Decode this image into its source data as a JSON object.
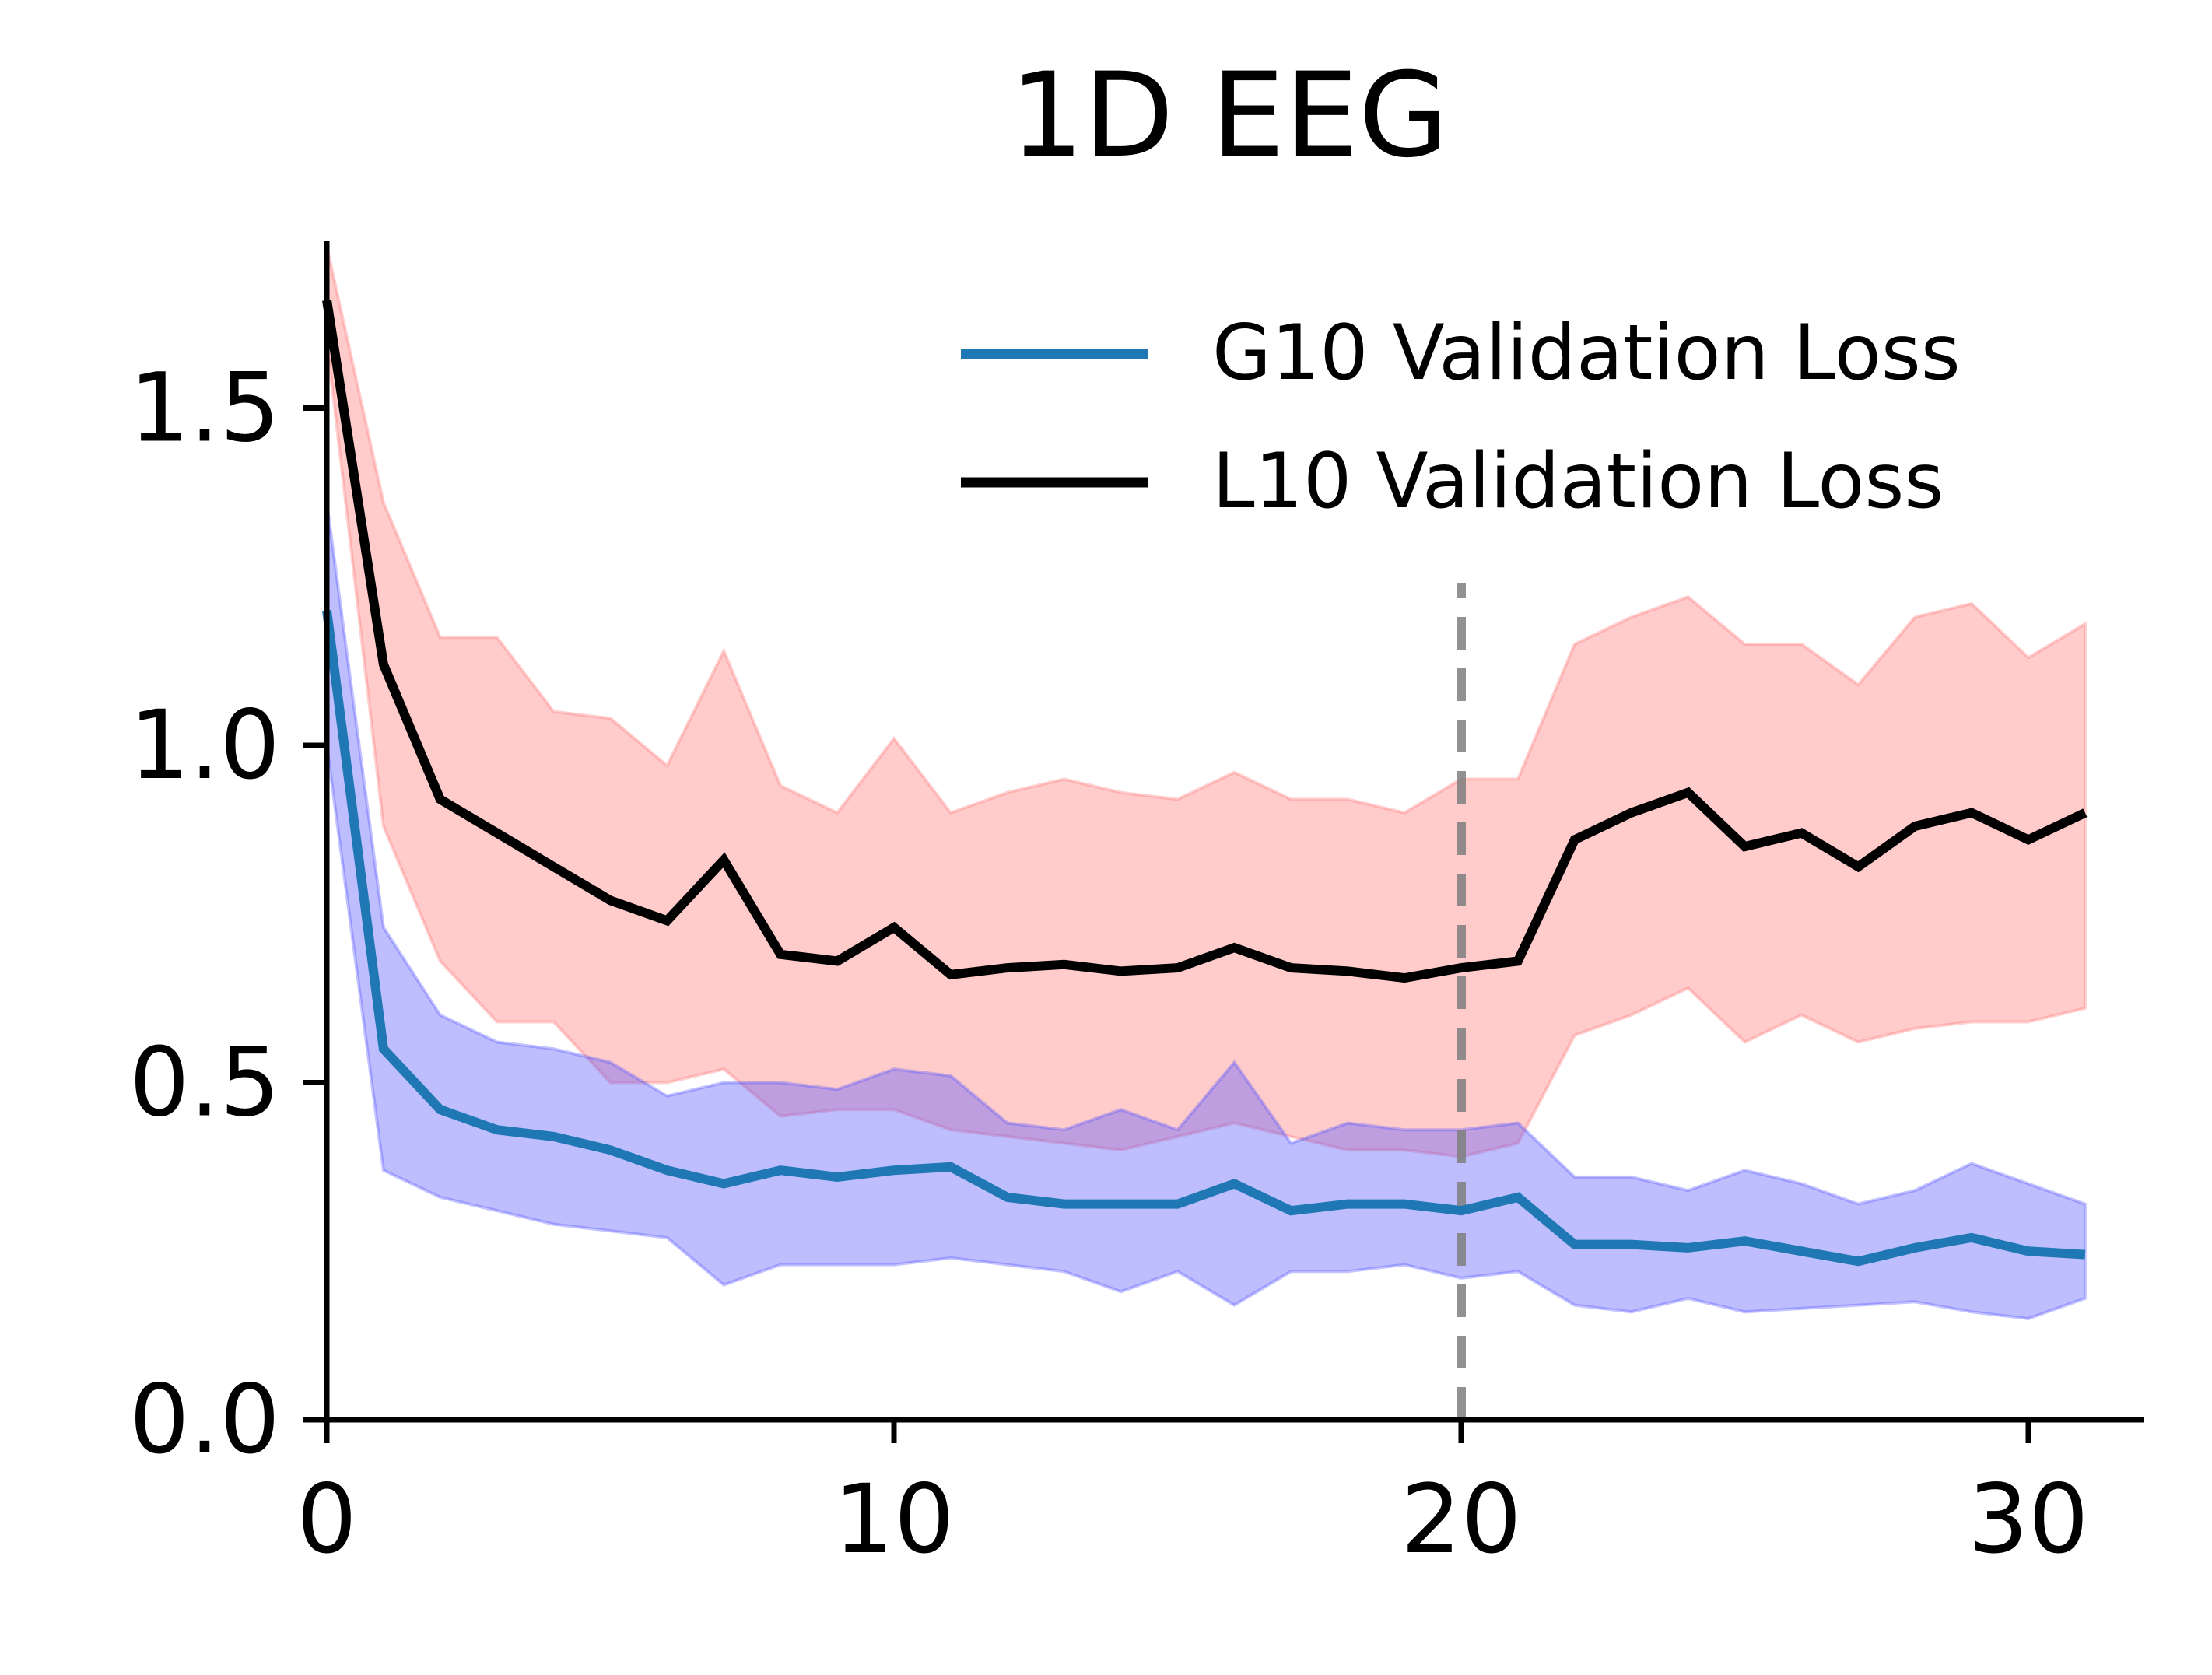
{
  "chart_data": {
    "type": "line",
    "title": "1D EEG",
    "xlabel": "",
    "ylabel": "",
    "xlim": [
      0,
      32
    ],
    "ylim": [
      0,
      1.75
    ],
    "x_ticks": [
      0,
      10,
      20,
      30
    ],
    "x_tick_labels": [
      "0",
      "10",
      "20",
      "30"
    ],
    "y_ticks": [
      0,
      0.5,
      1.0,
      1.5
    ],
    "y_tick_labels": [
      "0.0",
      "0.5",
      "1.0",
      "1.5"
    ],
    "grid": false,
    "legend_position": "top-right",
    "vline": {
      "x": 20,
      "color": "#7f7f7f",
      "style": "dashed",
      "y_range": [
        0,
        1.24
      ]
    },
    "x": [
      0,
      1,
      2,
      3,
      4,
      5,
      6,
      7,
      8,
      9,
      10,
      11,
      12,
      13,
      14,
      15,
      16,
      17,
      18,
      19,
      20,
      21,
      22,
      23,
      24,
      25,
      26,
      27,
      28,
      29,
      30,
      31
    ],
    "series": [
      {
        "name": "L10 Validation Loss",
        "color": "#000000",
        "band_color": "#ff7777",
        "values": [
          1.66,
          1.12,
          0.92,
          0.87,
          0.82,
          0.77,
          0.74,
          0.83,
          0.69,
          0.68,
          0.73,
          0.66,
          0.67,
          0.675,
          0.665,
          0.67,
          0.7,
          0.67,
          0.665,
          0.655,
          0.67,
          0.68,
          0.86,
          0.9,
          0.93,
          0.85,
          0.87,
          0.82,
          0.88,
          0.9,
          0.86,
          0.9
        ],
        "lower": [
          1.6,
          0.88,
          0.68,
          0.59,
          0.59,
          0.5,
          0.5,
          0.52,
          0.45,
          0.46,
          0.46,
          0.43,
          0.42,
          0.41,
          0.4,
          0.42,
          0.44,
          0.42,
          0.4,
          0.4,
          0.39,
          0.41,
          0.57,
          0.6,
          0.64,
          0.56,
          0.6,
          0.56,
          0.58,
          0.59,
          0.59,
          0.61
        ],
        "upper": [
          1.74,
          1.36,
          1.16,
          1.16,
          1.05,
          1.04,
          0.97,
          1.14,
          0.94,
          0.9,
          1.01,
          0.9,
          0.93,
          0.95,
          0.93,
          0.92,
          0.96,
          0.92,
          0.92,
          0.9,
          0.95,
          0.95,
          1.15,
          1.19,
          1.22,
          1.15,
          1.15,
          1.09,
          1.19,
          1.21,
          1.13,
          1.18
        ]
      },
      {
        "name": "G10 Validation Loss",
        "color": "#1f77b4",
        "band_color": "#5555ff",
        "values": [
          1.2,
          0.55,
          0.46,
          0.43,
          0.42,
          0.4,
          0.37,
          0.35,
          0.37,
          0.36,
          0.37,
          0.375,
          0.33,
          0.32,
          0.32,
          0.32,
          0.35,
          0.31,
          0.32,
          0.32,
          0.31,
          0.33,
          0.26,
          0.26,
          0.255,
          0.265,
          0.25,
          0.235,
          0.255,
          0.27,
          0.25,
          0.245
        ],
        "lower": [
          1.0,
          0.37,
          0.33,
          0.31,
          0.29,
          0.28,
          0.27,
          0.2,
          0.23,
          0.23,
          0.23,
          0.24,
          0.23,
          0.22,
          0.19,
          0.22,
          0.17,
          0.22,
          0.22,
          0.23,
          0.21,
          0.22,
          0.17,
          0.16,
          0.18,
          0.16,
          0.165,
          0.17,
          0.175,
          0.16,
          0.15,
          0.18
        ],
        "upper": [
          1.36,
          0.73,
          0.6,
          0.56,
          0.55,
          0.53,
          0.48,
          0.5,
          0.5,
          0.49,
          0.52,
          0.51,
          0.44,
          0.43,
          0.46,
          0.43,
          0.53,
          0.41,
          0.44,
          0.43,
          0.43,
          0.44,
          0.36,
          0.36,
          0.34,
          0.37,
          0.35,
          0.32,
          0.34,
          0.38,
          0.35,
          0.32
        ]
      }
    ]
  }
}
